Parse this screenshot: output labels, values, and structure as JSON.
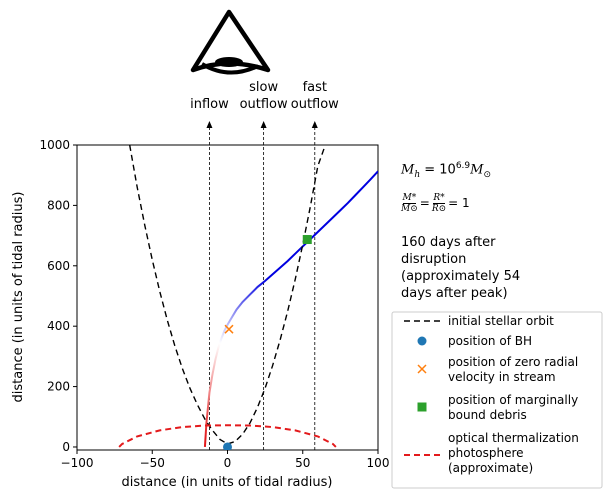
{
  "chart_data": {
    "type": "line",
    "xlabel": "distance (in units of tidal radius)",
    "ylabel": "distance (in units of tidal radius)",
    "xlim": [
      -100,
      100
    ],
    "ylim": [
      -10,
      1000
    ],
    "xticks": [
      -100,
      -50,
      0,
      50,
      100
    ],
    "yticks": [
      0,
      200,
      400,
      600,
      800,
      1000
    ],
    "grid": false,
    "legend_placement": "right, outside axes",
    "observer_icon": "eye-icon",
    "viewing_directions": [
      {
        "label_lines": [
          "inflow"
        ],
        "x": -12
      },
      {
        "label_lines": [
          "slow",
          "outflow"
        ],
        "x": 24
      },
      {
        "label_lines": [
          "fast",
          "outflow"
        ],
        "x": 58
      }
    ],
    "annotations": {
      "mass_text": "M_h = 10^{6.9} M_⊙",
      "mass_base": "M",
      "mass_sub": "h",
      "mass_eq": " = 10",
      "mass_exp": "6.9",
      "mass_tail": "M",
      "mass_tail_sub": "⊙",
      "ratio_text": "M*/M⊙ = R*/R⊙ = 1",
      "ratio_num1": "M*",
      "ratio_den1": "M⊙",
      "ratio_num2": "R*",
      "ratio_den2": "R⊙",
      "ratio_eq": "=",
      "ratio_end": "= 1",
      "time_lines": [
        "160 days after",
        "disruption",
        "(approximately 54",
        "days after peak)"
      ]
    },
    "series": [
      {
        "name": "initial stellar orbit",
        "style": "dashed",
        "color": "#000000",
        "x": [
          -65,
          -60,
          -55,
          -50,
          -45,
          -40,
          -35,
          -30,
          -25,
          -20,
          -15,
          -10,
          -5,
          0,
          5,
          10,
          15,
          20,
          25,
          30,
          35,
          40,
          45,
          50,
          55,
          60,
          65
        ],
        "y": [
          1000,
          860,
          735,
          620,
          515,
          420,
          335,
          260,
          195,
          140,
          92,
          55,
          25,
          10,
          18,
          42,
          80,
          132,
          195,
          270,
          355,
          450,
          555,
          670,
          795,
          930,
          1000
        ]
      },
      {
        "name": "position of BH",
        "style": "marker",
        "marker": "circle",
        "color": "#1f77b4",
        "x": [
          0
        ],
        "y": [
          0
        ]
      },
      {
        "name": "position of zero radial velocity in stream",
        "style": "marker",
        "marker": "x",
        "color": "#ff7f0e",
        "x": [
          1
        ],
        "y": [
          390
        ]
      },
      {
        "name": "position of marginally bound debris",
        "style": "marker",
        "marker": "square",
        "color": "#2ca02c",
        "x": [
          53
        ],
        "y": [
          687
        ]
      },
      {
        "name": "optical thermalization photosphere (approximate)",
        "style": "dashed",
        "color": "#e31a1c",
        "x": [
          -72,
          -70,
          -60,
          -45,
          -30,
          -15,
          0,
          15,
          30,
          45,
          60,
          70,
          72
        ],
        "y": [
          0,
          10,
          35,
          55,
          66,
          71,
          72,
          71,
          66,
          55,
          35,
          10,
          0
        ]
      }
    ],
    "stream": {
      "gradient_colors": [
        "#e31a1c",
        "#ffffff",
        "#0000e0"
      ],
      "x": [
        -15,
        -14.5,
        -14,
        -13,
        -12,
        -10,
        -8,
        -6,
        -4,
        -2,
        0,
        3,
        6,
        10,
        15,
        20,
        25,
        30,
        35,
        40,
        45,
        50,
        55,
        60,
        65,
        70,
        75,
        80,
        85,
        90,
        95,
        100
      ],
      "y": [
        0,
        40,
        80,
        130,
        180,
        240,
        290,
        330,
        360,
        385,
        405,
        430,
        455,
        480,
        505,
        530,
        550,
        572,
        594,
        616,
        640,
        664,
        688,
        712,
        736,
        760,
        784,
        808,
        834,
        860,
        886,
        913
      ],
      "tail_y_at_xmax": 935
    }
  }
}
